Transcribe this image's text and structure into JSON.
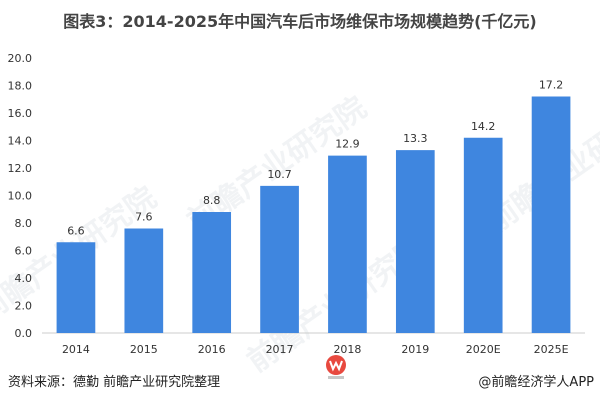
{
  "title": "图表3：2014-2025年中国汽车后市场维保市场规模趋势(千亿元)",
  "source": "资料来源：德勤 前瞻产业研究院整理",
  "app_label": "@前瞻经济学人APP",
  "watermark_text": "前瞻产业研究院",
  "colors": {
    "bar": "#3f86df",
    "axis": "#cccccc",
    "text": "#333333"
  },
  "chart_data": {
    "type": "bar",
    "categories": [
      "2014",
      "2015",
      "2016",
      "2017",
      "2018",
      "2019",
      "2020E",
      "2025E"
    ],
    "values": [
      6.6,
      7.6,
      8.8,
      10.7,
      12.9,
      13.3,
      14.2,
      17.2
    ],
    "value_labels": [
      "6.6",
      "7.6",
      "8.8",
      "10.7",
      "12.9",
      "13.3",
      "14.2",
      "17.2"
    ],
    "yticks": [
      "0.0",
      "2.0",
      "4.0",
      "6.0",
      "8.0",
      "10.0",
      "12.0",
      "14.0",
      "16.0",
      "18.0",
      "20.0"
    ],
    "ylim": [
      0,
      20
    ],
    "grid": false,
    "legend": "none"
  }
}
